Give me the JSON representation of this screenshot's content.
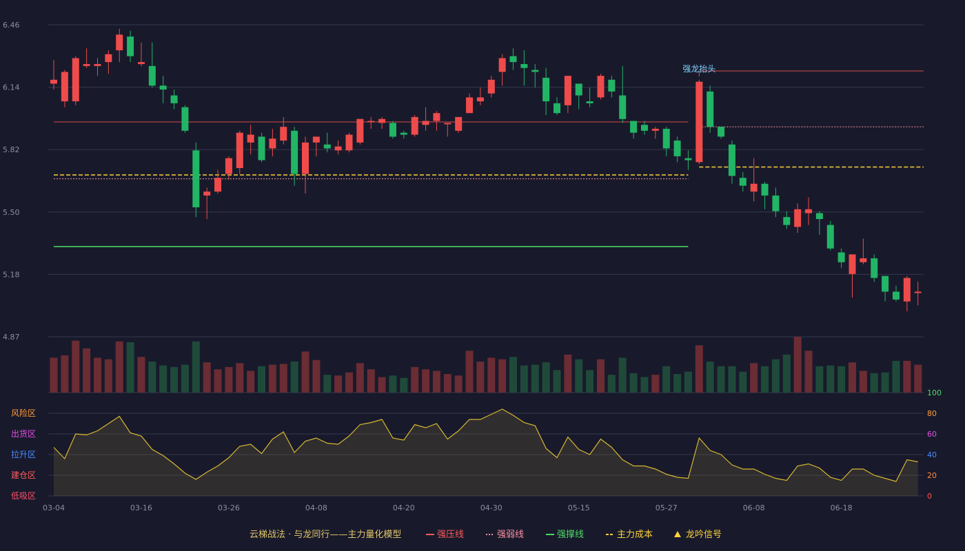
{
  "chart_data": {
    "type": "candlestick",
    "price_axis": {
      "min": 4.87,
      "max": 6.46,
      "ticks": [
        "6.46",
        "6.14",
        "5.82",
        "5.50",
        "5.18",
        "4.87"
      ]
    },
    "date_ticks": [
      {
        "index": 0,
        "label": "03-04"
      },
      {
        "index": 8,
        "label": "03-16"
      },
      {
        "index": 16,
        "label": "03-26"
      },
      {
        "index": 24,
        "label": "04-08"
      },
      {
        "index": 32,
        "label": "04-20"
      },
      {
        "index": 40,
        "label": "04-30"
      },
      {
        "index": 48,
        "label": "05-15"
      },
      {
        "index": 56,
        "label": "05-27"
      },
      {
        "index": 64,
        "label": "06-08"
      },
      {
        "index": 72,
        "label": "06-18"
      }
    ],
    "candles": [
      [
        6.16,
        6.18,
        6.13,
        6.28
      ],
      [
        6.07,
        6.22,
        6.04,
        6.23
      ],
      [
        6.07,
        6.29,
        6.05,
        6.3
      ],
      [
        6.25,
        6.26,
        6.24,
        6.34
      ],
      [
        6.25,
        6.26,
        6.2,
        6.29
      ],
      [
        6.27,
        6.31,
        6.21,
        6.33
      ],
      [
        6.33,
        6.41,
        6.27,
        6.44
      ],
      [
        6.4,
        6.3,
        6.27,
        6.43
      ],
      [
        6.26,
        6.27,
        6.25,
        6.37
      ],
      [
        6.25,
        6.15,
        6.14,
        6.37
      ],
      [
        6.15,
        6.13,
        6.06,
        6.2
      ],
      [
        6.1,
        6.06,
        6.03,
        6.13
      ],
      [
        6.04,
        5.92,
        5.91,
        6.05
      ],
      [
        5.82,
        5.53,
        5.48,
        5.86
      ],
      [
        5.59,
        5.61,
        5.47,
        5.63
      ],
      [
        5.61,
        5.68,
        5.6,
        5.72
      ],
      [
        5.7,
        5.78,
        5.67,
        5.79
      ],
      [
        5.73,
        5.91,
        5.7,
        5.92
      ],
      [
        5.86,
        5.9,
        5.8,
        5.95
      ],
      [
        5.89,
        5.77,
        5.76,
        5.91
      ],
      [
        5.83,
        5.88,
        5.79,
        5.93
      ],
      [
        5.87,
        5.94,
        5.85,
        5.99
      ],
      [
        5.92,
        5.7,
        5.64,
        5.94
      ],
      [
        5.7,
        5.86,
        5.6,
        5.89
      ],
      [
        5.86,
        5.89,
        5.79,
        5.89
      ],
      [
        5.85,
        5.83,
        5.81,
        5.91
      ],
      [
        5.82,
        5.84,
        5.8,
        5.87
      ],
      [
        5.82,
        5.9,
        5.81,
        5.91
      ],
      [
        5.86,
        5.98,
        5.85,
        5.98
      ],
      [
        5.97,
        5.97,
        5.93,
        5.99
      ],
      [
        5.96,
        5.98,
        5.93,
        5.99
      ],
      [
        5.96,
        5.89,
        5.88,
        5.97
      ],
      [
        5.91,
        5.9,
        5.88,
        5.92
      ],
      [
        5.9,
        5.99,
        5.89,
        6.0
      ],
      [
        5.95,
        5.97,
        5.92,
        6.04
      ],
      [
        5.97,
        6.01,
        5.92,
        6.02
      ],
      [
        5.96,
        5.96,
        5.89,
        5.96
      ],
      [
        5.92,
        5.99,
        5.91,
        5.99
      ],
      [
        6.01,
        6.09,
        6.01,
        6.11
      ],
      [
        6.07,
        6.09,
        6.05,
        6.14
      ],
      [
        6.11,
        6.18,
        6.09,
        6.2
      ],
      [
        6.22,
        6.29,
        6.15,
        6.31
      ],
      [
        6.3,
        6.27,
        6.23,
        6.34
      ],
      [
        6.26,
        6.24,
        6.15,
        6.33
      ],
      [
        6.23,
        6.22,
        6.14,
        6.26
      ],
      [
        6.19,
        6.07,
        6.0,
        6.24
      ],
      [
        6.06,
        6.01,
        6.0,
        6.09
      ],
      [
        6.05,
        6.2,
        6.01,
        6.2
      ],
      [
        6.16,
        6.1,
        6.03,
        6.16
      ],
      [
        6.07,
        6.06,
        6.04,
        6.14
      ],
      [
        6.09,
        6.2,
        6.08,
        6.21
      ],
      [
        6.18,
        6.12,
        6.09,
        6.2
      ],
      [
        6.1,
        5.98,
        5.96,
        6.25
      ],
      [
        5.97,
        5.91,
        5.88,
        5.97
      ],
      [
        5.95,
        5.92,
        5.9,
        5.97
      ],
      [
        5.92,
        5.93,
        5.88,
        5.94
      ],
      [
        5.93,
        5.83,
        5.79,
        5.94
      ],
      [
        5.87,
        5.79,
        5.76,
        5.89
      ],
      [
        5.78,
        5.77,
        5.72,
        5.82
      ],
      [
        5.76,
        6.17,
        5.75,
        6.18
      ],
      [
        6.12,
        5.94,
        5.91,
        6.15
      ],
      [
        5.94,
        5.89,
        5.88,
        5.94
      ],
      [
        5.85,
        5.69,
        5.65,
        5.87
      ],
      [
        5.68,
        5.64,
        5.61,
        5.71
      ],
      [
        5.61,
        5.65,
        5.56,
        5.78
      ],
      [
        5.65,
        5.59,
        5.52,
        5.66
      ],
      [
        5.59,
        5.51,
        5.48,
        5.63
      ],
      [
        5.48,
        5.44,
        5.42,
        5.51
      ],
      [
        5.43,
        5.52,
        5.4,
        5.55
      ],
      [
        5.5,
        5.52,
        5.44,
        5.58
      ],
      [
        5.5,
        5.47,
        5.39,
        5.51
      ],
      [
        5.44,
        5.32,
        5.31,
        5.46
      ],
      [
        5.3,
        5.25,
        5.22,
        5.32
      ],
      [
        5.19,
        5.29,
        5.07,
        5.29
      ],
      [
        5.25,
        5.27,
        5.24,
        5.37
      ],
      [
        5.27,
        5.17,
        5.15,
        5.29
      ],
      [
        5.18,
        5.1,
        5.05,
        5.18
      ],
      [
        5.1,
        5.06,
        5.05,
        5.13
      ],
      [
        5.05,
        5.17,
        5.0,
        5.18
      ],
      [
        5.1,
        5.1,
        5.03,
        5.15
      ]
    ],
    "volume": [
      45,
      48,
      67,
      57,
      45,
      43,
      66,
      65,
      46,
      40,
      35,
      33,
      36,
      66,
      39,
      30,
      33,
      38,
      28,
      34,
      36,
      37,
      40,
      53,
      42,
      23,
      22,
      26,
      38,
      30,
      20,
      22,
      19,
      33,
      30,
      28,
      24,
      22,
      54,
      40,
      45,
      43,
      46,
      35,
      36,
      39,
      29,
      49,
      43,
      29,
      43,
      23,
      45,
      25,
      20,
      23,
      34,
      24,
      27,
      61,
      40,
      34,
      34,
      27,
      38,
      34,
      43,
      49,
      72,
      54,
      34,
      35,
      34,
      39,
      28,
      25,
      26,
      41,
      41,
      36
    ],
    "volume_colors": {
      "up": "#6b2c34",
      "down": "#1f4a3a"
    },
    "indicator": {
      "name": "",
      "y_ticks": [
        "0",
        "20",
        "40",
        "60",
        "80",
        "100"
      ],
      "zones": [
        "风险区",
        "出货区",
        "拉升区",
        "建仓区",
        "低吸区"
      ],
      "values": [
        47,
        36,
        60,
        59,
        63,
        70,
        77,
        61,
        58,
        45,
        39,
        31,
        22,
        16,
        23,
        29,
        37,
        48,
        50,
        41,
        55,
        62,
        42,
        53,
        56,
        51,
        50,
        58,
        69,
        71,
        74,
        56,
        54,
        69,
        66,
        70,
        55,
        63,
        74,
        74,
        79,
        84,
        78,
        71,
        68,
        46,
        37,
        57,
        45,
        40,
        55,
        47,
        35,
        29,
        29,
        26,
        21,
        18,
        17,
        56,
        44,
        40,
        30,
        26,
        26,
        21,
        17,
        15,
        29,
        31,
        27,
        18,
        15,
        26,
        26,
        20,
        17,
        14,
        35,
        33
      ]
    },
    "lines": {
      "strong_pressure_1": {
        "value": 5.965,
        "from": 0,
        "to": 58
      },
      "strong_pressure_2": {
        "value": 6.225,
        "from": 59,
        "to": 79
      },
      "weak_line_1": {
        "value": 5.675,
        "from": 0,
        "to": 58
      },
      "weak_line_2": {
        "value": 5.94,
        "from": 59,
        "to": 79
      },
      "support_line": {
        "value": 5.33,
        "from": 0,
        "to": 58
      },
      "main_cost_1": {
        "value": 5.695,
        "from": 0,
        "to": 58
      },
      "main_cost_2": {
        "value": 5.735,
        "from": 59,
        "to": 79
      }
    },
    "signal": {
      "index": 59,
      "label": "强龙抬头"
    },
    "legend": {
      "title": "云梯战法 · 与龙同行——主力量化模型",
      "items": [
        {
          "label": "强压线",
          "color": "#ff5a5a",
          "style": "solid"
        },
        {
          "label": "强弱线",
          "color": "#ff8fa3",
          "style": "dotted"
        },
        {
          "label": "强撑线",
          "color": "#4ddc66",
          "style": "solid"
        },
        {
          "label": "主力成本",
          "color": "#ffd23a",
          "style": "dashed"
        },
        {
          "label": "龙吟信号",
          "color": "#ffd23a",
          "style": "triangle"
        }
      ]
    },
    "colors": {
      "up": "#ef4b4b",
      "down": "#22b565",
      "grid": "#34374c",
      "zone_colors": [
        "#ff9a3c",
        "#e64ee6",
        "#4a8bff",
        "#ff5b5b",
        "#ff4d6a"
      ],
      "indicator_axis_colors": [
        "#ff4d4d",
        "#ff8b3c",
        "#4a8bff",
        "#e64ee6",
        "#ff9a3c",
        "#4ddc66"
      ]
    }
  }
}
